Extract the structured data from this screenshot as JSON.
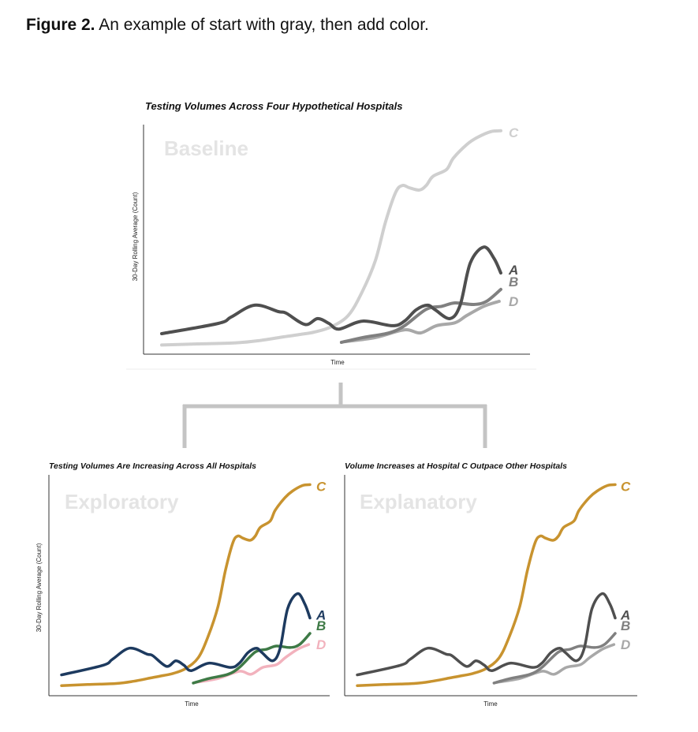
{
  "figure": {
    "label": "Figure 2.",
    "caption": "An example of start with gray, then add color."
  },
  "chart_data": [
    {
      "type": "line",
      "title": "Testing Volumes Across Four Hypothetical Hospitals",
      "stage_label": "Baseline",
      "xlabel": "Time",
      "ylabel": "30-Day Rolling Average (Count)",
      "x_ticks": "none",
      "y_ticks": "none",
      "grid": false,
      "legend": "direct labels at line ends",
      "series": [
        {
          "name": "C",
          "color": "#cfcfcf",
          "x": [
            0,
            10.5,
            22,
            29,
            36,
            41,
            45,
            50,
            55,
            59,
            63,
            66,
            69,
            71,
            73,
            76,
            78,
            80,
            84,
            86,
            90,
            93,
            97,
            100
          ],
          "y": [
            4,
            4.5,
            5,
            6,
            7.6,
            8.7,
            9.7,
            12,
            17,
            27,
            41,
            58,
            71,
            74,
            73,
            72,
            74,
            78,
            81,
            86,
            92,
            95,
            97.6,
            98
          ]
        },
        {
          "name": "A",
          "color": "#4f4f4f",
          "x": [
            0,
            16.7,
            20.5,
            27.4,
            34.4,
            36.7,
            42.3,
            46,
            49.3,
            52.3,
            59.3,
            68,
            71.6,
            75,
            78.4,
            80.7,
            85,
            88,
            91,
            95,
            98,
            100
          ],
          "y": [
            9,
            13.5,
            16.3,
            21.5,
            18.7,
            18,
            13,
            15.6,
            13.5,
            11,
            14.5,
            12.5,
            14.5,
            19.4,
            21.5,
            19.4,
            15.6,
            21.5,
            40,
            47,
            42,
            35.6
          ]
        },
        {
          "name": "B",
          "color": "#808080",
          "x": [
            53,
            59.3,
            67,
            71.6,
            78,
            82.6,
            86.5,
            92,
            95.8,
            100
          ],
          "y": [
            5.2,
            7.3,
            9.3,
            12.5,
            19.7,
            21,
            22.5,
            21.8,
            23.2,
            28.4
          ]
        },
        {
          "name": "D",
          "color": "#a8a8a8",
          "x": [
            54,
            63,
            71.6,
            76.3,
            81,
            86.5,
            90,
            95,
            99.5
          ],
          "y": [
            5.5,
            7.3,
            10.7,
            9.3,
            12.5,
            13.8,
            17,
            21,
            23.2
          ]
        }
      ]
    },
    {
      "type": "line",
      "title": "Testing Volumes Are Increasing Across All Hospitals",
      "stage_label": "Exploratory",
      "xlabel": "Time",
      "ylabel": "30-Day Rolling Average (Count)",
      "x_ticks": "none",
      "y_ticks": "none",
      "grid": false,
      "legend": "direct labels at line ends",
      "series_colors": {
        "C": "#c8932f",
        "A": "#1d3a5f",
        "B": "#3e7a46",
        "D": "#f2b2bd"
      }
    },
    {
      "type": "line",
      "title": "Volume Increases at Hospital C Outpace Other Hospitals",
      "stage_label": "Explanatory",
      "xlabel": "Time",
      "ylabel": "",
      "x_ticks": "none",
      "y_ticks": "none",
      "grid": false,
      "legend": "direct labels at line ends",
      "series_colors": {
        "C": "#c8932f",
        "A": "#4f4f4f",
        "B": "#808080",
        "D": "#a8a8a8"
      }
    }
  ],
  "colors": {
    "connector": "#c4c4c4",
    "axis": "#333333"
  }
}
